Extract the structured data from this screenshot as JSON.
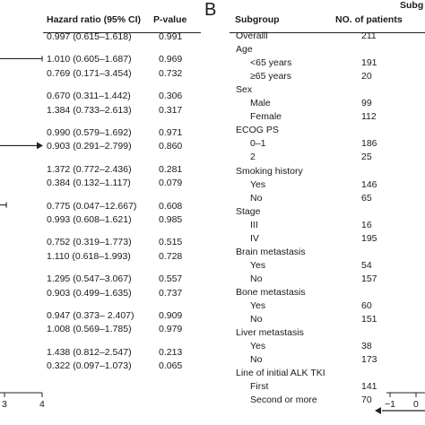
{
  "panel_b_label": "B",
  "panel_b_top_cut": "Subg",
  "chart_data": [
    {
      "type": "table",
      "panel": "A (right portion)",
      "columns": [
        "Hazard ratio (95% CI)",
        "P-value"
      ],
      "groups": [
        [
          {
            "ci": "0.997 (0.615–1.618)",
            "p": "0.991"
          }
        ],
        [
          {
            "ci": "1.010 (0.605–1.687)",
            "p": "0.969"
          },
          {
            "ci": "0.769 (0.171–3.454)",
            "p": "0.732"
          }
        ],
        [
          {
            "ci": "0.670 (0.311–1.442)",
            "p": "0.306"
          },
          {
            "ci": "1.384 (0.733–2.613)",
            "p": "0.317"
          }
        ],
        [
          {
            "ci": "0.990 (0.579–1.692)",
            "p": "0.971"
          },
          {
            "ci": "0.903 (0.291–2.799)",
            "p": "0.860"
          }
        ],
        [
          {
            "ci": "1.372 (0.772–2.436)",
            "p": "0.281"
          },
          {
            "ci": "0.384 (0.132–1.117)",
            "p": "0.079"
          }
        ],
        [
          {
            "ci": "0.775 (0.047–12.667)",
            "p": "0.608"
          },
          {
            "ci": "0.993 (0.608–1.621)",
            "p": "0.985"
          }
        ],
        [
          {
            "ci": "0.752 (0.319–1.773)",
            "p": "0.515"
          },
          {
            "ci": "1.110 (0.618–1.993)",
            "p": "0.728"
          }
        ],
        [
          {
            "ci": "1.295 (0.547–3.067)",
            "p": "0.557"
          },
          {
            "ci": "0.903 (0.499–1.635)",
            "p": "0.737"
          }
        ],
        [
          {
            "ci": "0.947 (0.373– 2.407)",
            "p": "0.909"
          },
          {
            "ci": "1.008 (0.569–1.785)",
            "p": "0.979"
          }
        ],
        [
          {
            "ci": "1.438 (0.812–2.547)",
            "p": "0.213"
          },
          {
            "ci": "0.322 (0.097–1.073)",
            "p": "0.065"
          }
        ]
      ]
    },
    {
      "type": "line",
      "panel": "A forest plot (cut off at left)",
      "x_ticks": [
        "3",
        "4"
      ],
      "rows": [
        {
          "row": 1,
          "line_from": null,
          "line_to": 4.0,
          "cut_left": true,
          "arrow": false
        },
        {
          "row": 6,
          "line_from": null,
          "line_to": 4.0,
          "cut_left": true,
          "arrow": true
        },
        {
          "row": 9,
          "line_from": null,
          "line_to": 3.05,
          "cut_left": true,
          "arrow": false
        }
      ]
    },
    {
      "type": "table",
      "panel": "B",
      "columns": [
        "Subgroup",
        "NO. of patients"
      ],
      "rows": [
        {
          "label": "Overalll",
          "n": "211",
          "indent": false
        },
        {
          "label": "Age",
          "n": "",
          "indent": false
        },
        {
          "label": "<65 years",
          "n": "191",
          "indent": true
        },
        {
          "label": "≥65 years",
          "n": "20",
          "indent": true
        },
        {
          "label": "Sex",
          "n": "",
          "indent": false
        },
        {
          "label": "Male",
          "n": "99",
          "indent": true
        },
        {
          "label": "Female",
          "n": "112",
          "indent": true
        },
        {
          "label": "ECOG PS",
          "n": "",
          "indent": false
        },
        {
          "label": "0–1",
          "n": "186",
          "indent": true
        },
        {
          "label": "2",
          "n": "25",
          "indent": true
        },
        {
          "label": "Smoking history",
          "n": "",
          "indent": false
        },
        {
          "label": "Yes",
          "n": "146",
          "indent": true
        },
        {
          "label": "No",
          "n": "65",
          "indent": true
        },
        {
          "label": "Stage",
          "n": "",
          "indent": false
        },
        {
          "label": "III",
          "n": "16",
          "indent": true
        },
        {
          "label": "IV",
          "n": "195",
          "indent": true
        },
        {
          "label": "Brain metastasis",
          "n": "",
          "indent": false
        },
        {
          "label": "Yes",
          "n": "54",
          "indent": true
        },
        {
          "label": "No",
          "n": "157",
          "indent": true
        },
        {
          "label": "Bone metastasis",
          "n": "",
          "indent": false
        },
        {
          "label": "Yes",
          "n": "60",
          "indent": true
        },
        {
          "label": "No",
          "n": "151",
          "indent": true
        },
        {
          "label": "Liver metastasis",
          "n": "",
          "indent": false
        },
        {
          "label": "Yes",
          "n": "38",
          "indent": true
        },
        {
          "label": "No",
          "n": "173",
          "indent": true
        },
        {
          "label": "Line of initial ALK TKI",
          "n": "",
          "indent": false
        },
        {
          "label": "First",
          "n": "141",
          "indent": true
        },
        {
          "label": "Second or more",
          "n": "70",
          "indent": true
        }
      ]
    },
    {
      "type": "line",
      "panel": "B forest plot axis (cut off at right)",
      "x_ticks": [
        "−1",
        "0"
      ],
      "arrow_direction": "left"
    }
  ]
}
